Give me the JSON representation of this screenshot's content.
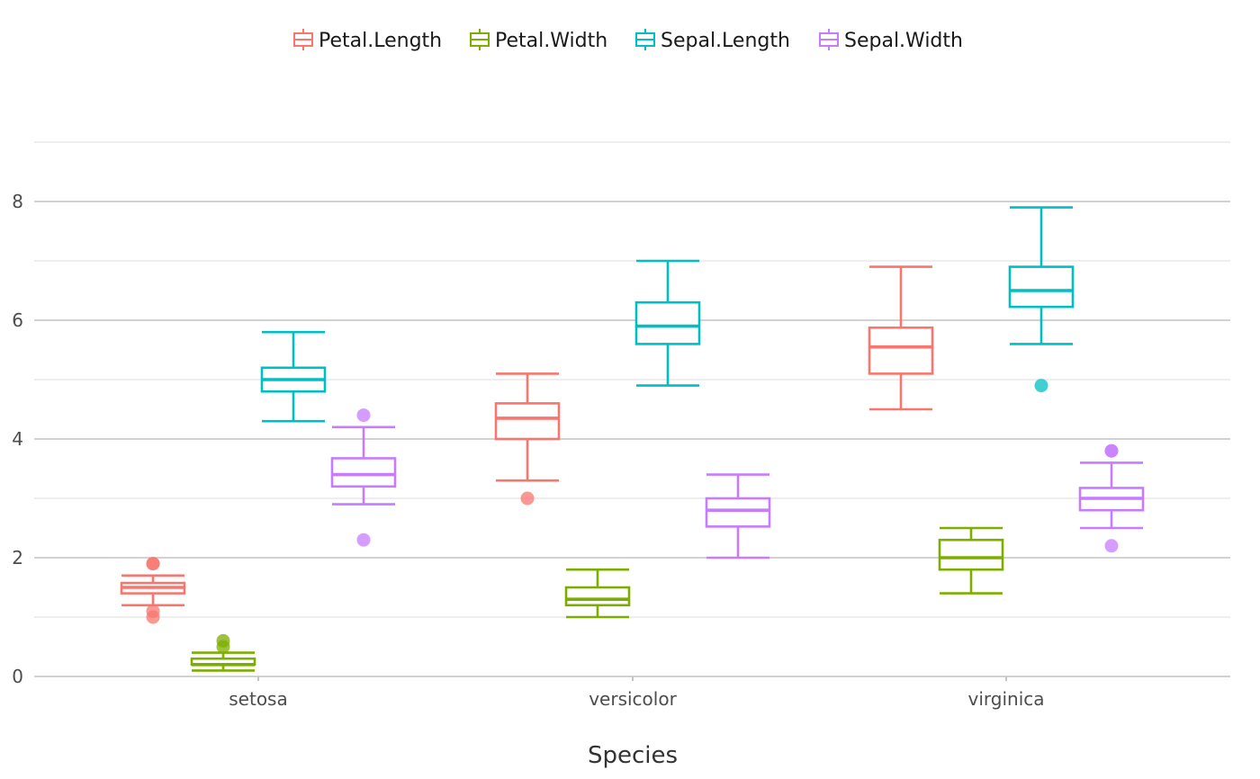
{
  "chart_data": {
    "type": "boxplot",
    "title": "",
    "xlabel": "Species",
    "ylabel": "",
    "ylim": [
      0,
      9
    ],
    "y_ticks": [
      0,
      2,
      4,
      6,
      8
    ],
    "grid": true,
    "legend_position": "top",
    "categories": [
      "setosa",
      "versicolor",
      "virginica"
    ],
    "series": [
      {
        "name": "Petal.Length",
        "color": "#F8766D",
        "boxes": [
          {
            "category": "setosa",
            "min": 1.2,
            "q1": 1.4,
            "median": 1.5,
            "q3": 1.575,
            "max": 1.7,
            "outliers": [
              1.9,
              1.0,
              1.1,
              1.9
            ]
          },
          {
            "category": "versicolor",
            "min": 3.3,
            "q1": 4.0,
            "median": 4.35,
            "q3": 4.6,
            "max": 5.1,
            "outliers": [
              3.0
            ]
          },
          {
            "category": "virginica",
            "min": 4.5,
            "q1": 5.1,
            "median": 5.55,
            "q3": 5.875,
            "max": 6.9,
            "outliers": []
          }
        ]
      },
      {
        "name": "Petal.Width",
        "color": "#7CAE00",
        "boxes": [
          {
            "category": "setosa",
            "min": 0.1,
            "q1": 0.2,
            "median": 0.2,
            "q3": 0.3,
            "max": 0.4,
            "outliers": [
              0.5,
              0.6
            ]
          },
          {
            "category": "versicolor",
            "min": 1.0,
            "q1": 1.2,
            "median": 1.3,
            "q3": 1.5,
            "max": 1.8,
            "outliers": []
          },
          {
            "category": "virginica",
            "min": 1.4,
            "q1": 1.8,
            "median": 2.0,
            "q3": 2.3,
            "max": 2.5,
            "outliers": []
          }
        ]
      },
      {
        "name": "Sepal.Length",
        "color": "#00BFC4",
        "boxes": [
          {
            "category": "setosa",
            "min": 4.3,
            "q1": 4.8,
            "median": 5.0,
            "q3": 5.2,
            "max": 5.8,
            "outliers": []
          },
          {
            "category": "versicolor",
            "min": 4.9,
            "q1": 5.6,
            "median": 5.9,
            "q3": 6.3,
            "max": 7.0,
            "outliers": []
          },
          {
            "category": "virginica",
            "min": 5.6,
            "q1": 6.225,
            "median": 6.5,
            "q3": 6.9,
            "max": 7.9,
            "outliers": [
              4.9
            ]
          }
        ]
      },
      {
        "name": "Sepal.Width",
        "color": "#C77CFF",
        "boxes": [
          {
            "category": "setosa",
            "min": 2.9,
            "q1": 3.2,
            "median": 3.4,
            "q3": 3.675,
            "max": 4.2,
            "outliers": [
              4.4,
              2.3
            ]
          },
          {
            "category": "versicolor",
            "min": 2.0,
            "q1": 2.525,
            "median": 2.8,
            "q3": 3.0,
            "max": 3.4,
            "outliers": []
          },
          {
            "category": "virginica",
            "min": 2.5,
            "q1": 2.8,
            "median": 3.0,
            "q3": 3.175,
            "max": 3.6,
            "outliers": [
              3.8,
              2.2,
              3.8
            ]
          }
        ]
      }
    ]
  }
}
